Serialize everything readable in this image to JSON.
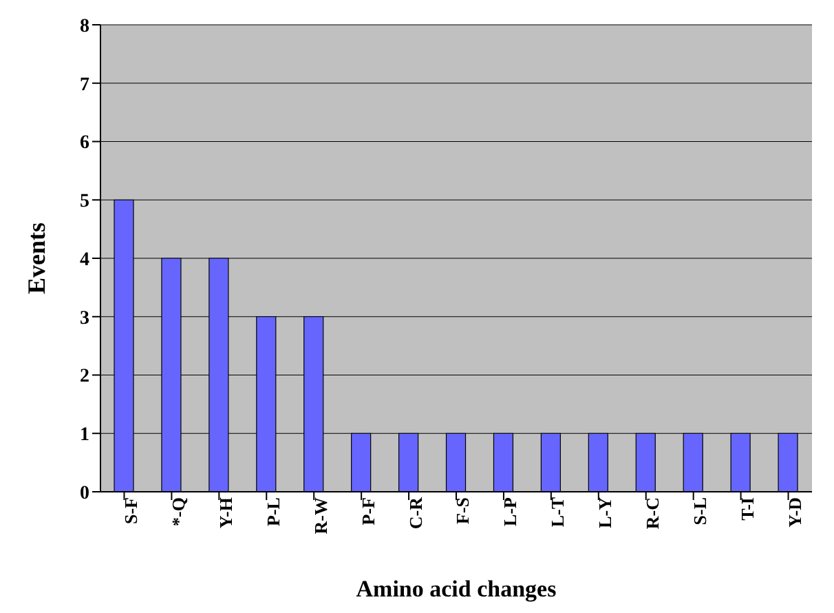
{
  "chart_data": {
    "type": "bar",
    "xlabel": "Amino acid changes",
    "ylabel": "Events",
    "categories": [
      "S-F",
      "*-Q",
      "Y-H",
      "P-L",
      "R-W",
      "P-F",
      "C-R",
      "F-S",
      "L-P",
      "L-T",
      "L-Y",
      "R-C",
      "S-L",
      "T-I",
      "Y-D"
    ],
    "values": [
      5,
      4,
      4,
      3,
      3,
      1,
      1,
      1,
      1,
      1,
      1,
      1,
      1,
      1,
      1
    ],
    "color": "#6666ff",
    "ylim": [
      0,
      8
    ],
    "yticks": [
      0,
      1,
      2,
      3,
      4,
      5,
      6,
      7,
      8
    ],
    "grid": "y"
  }
}
